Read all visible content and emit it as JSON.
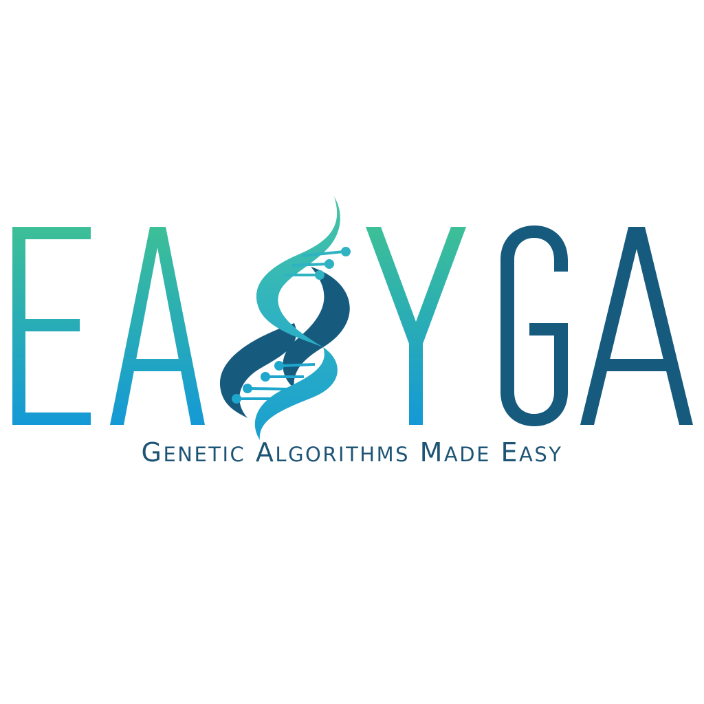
{
  "logo": {
    "wordmark": "EASYGA",
    "tagline_text": "Genetic Algorithms Made Easy",
    "tagline_words": [
      {
        "cap": "G",
        "rest": "ENETIC"
      },
      {
        "cap": "A",
        "rest": "LGORITHMS"
      },
      {
        "cap": "M",
        "rest": "ADE"
      },
      {
        "cap": "E",
        "rest": "ASY"
      }
    ]
  },
  "colors": {
    "gradient_top": "#3dbf97",
    "gradient_bottom": "#1499d6",
    "navy": "#165a7e",
    "tagline": "#1d5475",
    "background": "#ffffff"
  },
  "icons": {
    "dna": "dna-helix-icon"
  }
}
